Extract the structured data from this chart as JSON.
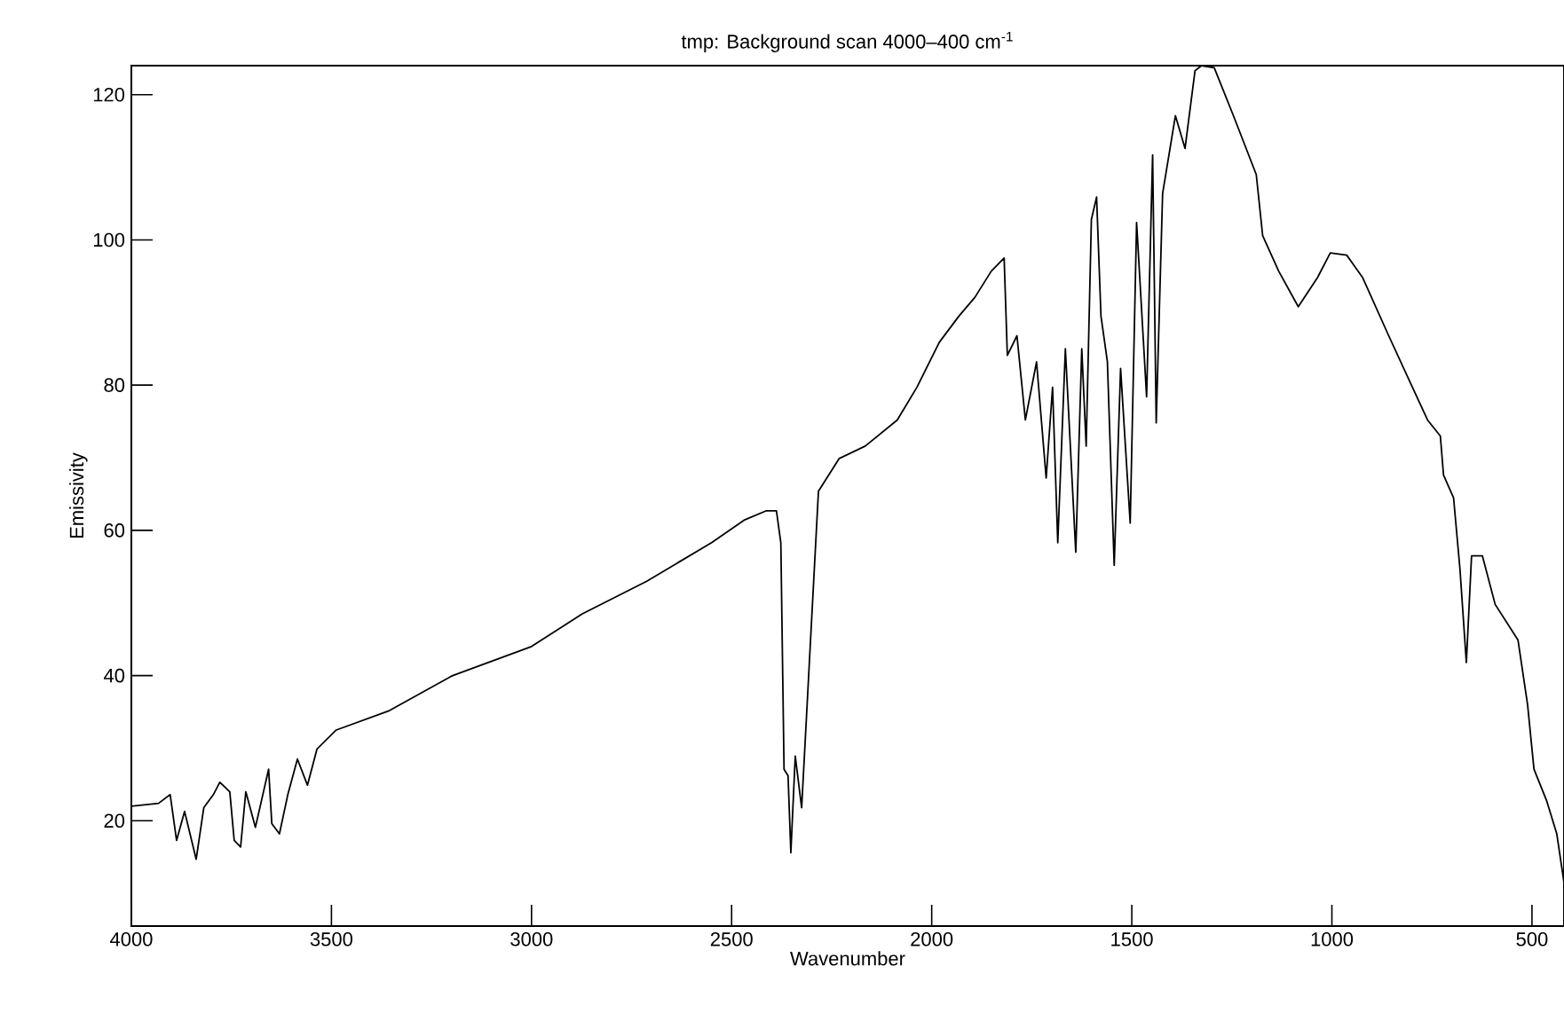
{
  "chart_data": {
    "type": "line",
    "title": "tmp: Background scan 4000–400 cm$^{-1}$",
    "xlabel": "Wavenumber",
    "ylabel": "Emissivity",
    "xlim": [
      4000,
      420
    ],
    "ylim": [
      5.5,
      124
    ],
    "xticks": [
      4000,
      3500,
      3000,
      2500,
      2000,
      1500,
      1000,
      500
    ],
    "yticks": [
      20,
      40,
      60,
      80,
      100,
      120
    ],
    "series": [
      {
        "color": "#000000",
        "x": [
          4000,
          3932,
          3903,
          3887,
          3867,
          3838,
          3819,
          3795,
          3779,
          3754,
          3743,
          3727,
          3714,
          3690,
          3657,
          3649,
          3630,
          3609,
          3585,
          3560,
          3536,
          3488,
          3358,
          3197,
          3000,
          2873,
          2712,
          2550,
          2469,
          2413,
          2388,
          2377,
          2369,
          2359,
          2352,
          2341,
          2325,
          2283,
          2231,
          2166,
          2086,
          2037,
          1981,
          1932,
          1892,
          1851,
          1819,
          1811,
          1787,
          1766,
          1738,
          1714,
          1698,
          1685,
          1666,
          1640,
          1625,
          1614,
          1601,
          1588,
          1577,
          1561,
          1544,
          1528,
          1504,
          1488,
          1463,
          1448,
          1439,
          1423,
          1391,
          1367,
          1342,
          1326,
          1294,
          1246,
          1189,
          1173,
          1133,
          1084,
          1036,
          1004,
          963,
          923,
          858,
          802,
          761,
          729,
          721,
          696,
          680,
          664,
          651,
          624,
          592,
          535,
          511,
          495,
          463,
          438,
          420
        ],
        "values": [
          22.0,
          22.4,
          23.6,
          17.3,
          21.3,
          14.7,
          21.8,
          23.6,
          25.3,
          24.0,
          17.3,
          16.4,
          24.0,
          19.1,
          27.1,
          19.6,
          18.2,
          23.6,
          28.5,
          24.9,
          29.9,
          32.5,
          35.1,
          40.0,
          44.0,
          48.5,
          53.0,
          58.3,
          61.4,
          62.7,
          62.7,
          58.3,
          27.1,
          26.2,
          15.6,
          28.9,
          21.8,
          65.4,
          69.9,
          71.6,
          75.2,
          79.7,
          85.9,
          89.5,
          92.1,
          95.7,
          97.5,
          84.1,
          86.8,
          75.2,
          83.2,
          67.2,
          79.7,
          58.3,
          85.0,
          57.0,
          85.0,
          71.6,
          102.8,
          105.9,
          89.5,
          83.2,
          55.2,
          82.3,
          61.0,
          102.4,
          78.4,
          111.7,
          74.8,
          106.4,
          117.1,
          112.6,
          123.3,
          124.0,
          123.7,
          117.1,
          109.0,
          100.6,
          95.7,
          90.8,
          94.8,
          98.2,
          97.9,
          94.8,
          86.8,
          80.1,
          75.2,
          73.0,
          67.6,
          64.5,
          54.7,
          41.8,
          56.5,
          56.5,
          49.8,
          44.9,
          36.0,
          27.1,
          22.7,
          18.2,
          11.5
        ]
      }
    ]
  }
}
